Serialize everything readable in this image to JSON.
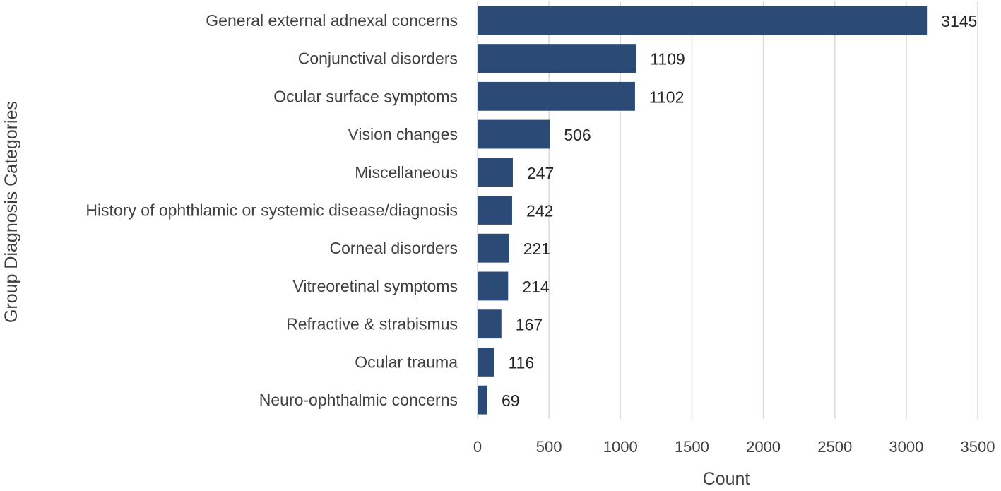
{
  "chart_data": {
    "type": "bar",
    "orientation": "horizontal",
    "title": "",
    "xlabel": "Count",
    "ylabel": "Group Diagnosis Categories",
    "xlim": [
      0,
      3500
    ],
    "xticks": [
      0,
      500,
      1000,
      1500,
      2000,
      2500,
      3000,
      3500
    ],
    "grid": "vertical",
    "bar_color": "#2b4a75",
    "categories": [
      "General external adnexal concerns",
      "Conjunctival disorders",
      "Ocular surface symptoms",
      "Vision changes",
      "Miscellaneous",
      "History of ophthlamic or systemic disease/diagnosis",
      "Corneal disorders",
      "Vitreoretinal symptoms",
      "Refractive & strabismus",
      "Ocular trauma",
      "Neuro-ophthalmic concerns"
    ],
    "values": [
      3145,
      1109,
      1102,
      506,
      247,
      242,
      221,
      214,
      167,
      116,
      69
    ]
  }
}
